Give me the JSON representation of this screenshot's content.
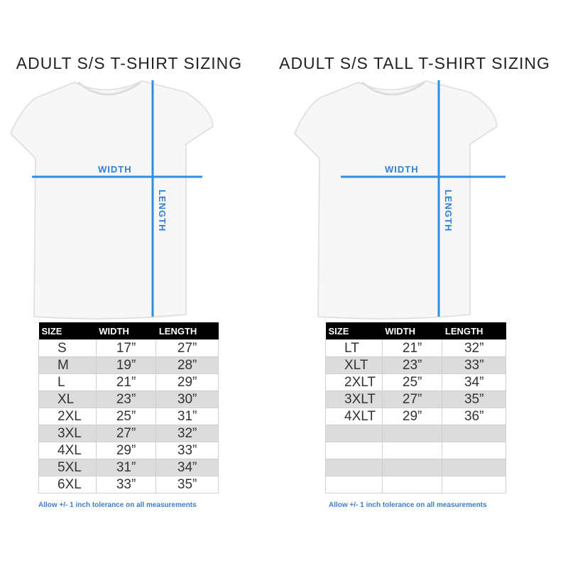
{
  "left": {
    "title": "ADULT S/S T-SHIRT SIZING",
    "width_label": "WIDTH",
    "length_label": "LENGTH",
    "headers": [
      "SIZE",
      "WIDTH",
      "LENGTH"
    ],
    "rows": [
      [
        "S",
        "17”",
        "27”"
      ],
      [
        "M",
        "19”",
        "28”"
      ],
      [
        "L",
        "21”",
        "29”"
      ],
      [
        "XL",
        "23”",
        "30”"
      ],
      [
        "2XL",
        "25”",
        "31”"
      ],
      [
        "3XL",
        "27”",
        "32”"
      ],
      [
        "4XL",
        "29”",
        "33”"
      ],
      [
        "5XL",
        "31”",
        "34”"
      ],
      [
        "6XL",
        "33”",
        "35”"
      ]
    ],
    "note": "Allow +/- 1 inch tolerance on all measurements"
  },
  "right": {
    "title": "ADULT S/S TALL T-SHIRT SIZING",
    "width_label": "WIDTH",
    "length_label": "LENGTH",
    "headers": [
      "SIZE",
      "WIDTH",
      "LENGTH"
    ],
    "rows": [
      [
        "LT",
        "21”",
        "32”"
      ],
      [
        "XLT",
        "23”",
        "33”"
      ],
      [
        "2XLT",
        "25”",
        "34”"
      ],
      [
        "3XLT",
        "27”",
        "35”"
      ],
      [
        "4XLT",
        "29”",
        "36”"
      ],
      [
        "",
        "",
        ""
      ],
      [
        "",
        "",
        ""
      ],
      [
        "",
        "",
        ""
      ],
      [
        "",
        "",
        ""
      ]
    ],
    "note": "Allow +/- 1 inch tolerance on all measurements"
  },
  "colors": {
    "measure_line": "#2f8ee0",
    "header_bg": "#000000",
    "alt_row": "#dcdcdc",
    "note": "#3b7ed0"
  }
}
